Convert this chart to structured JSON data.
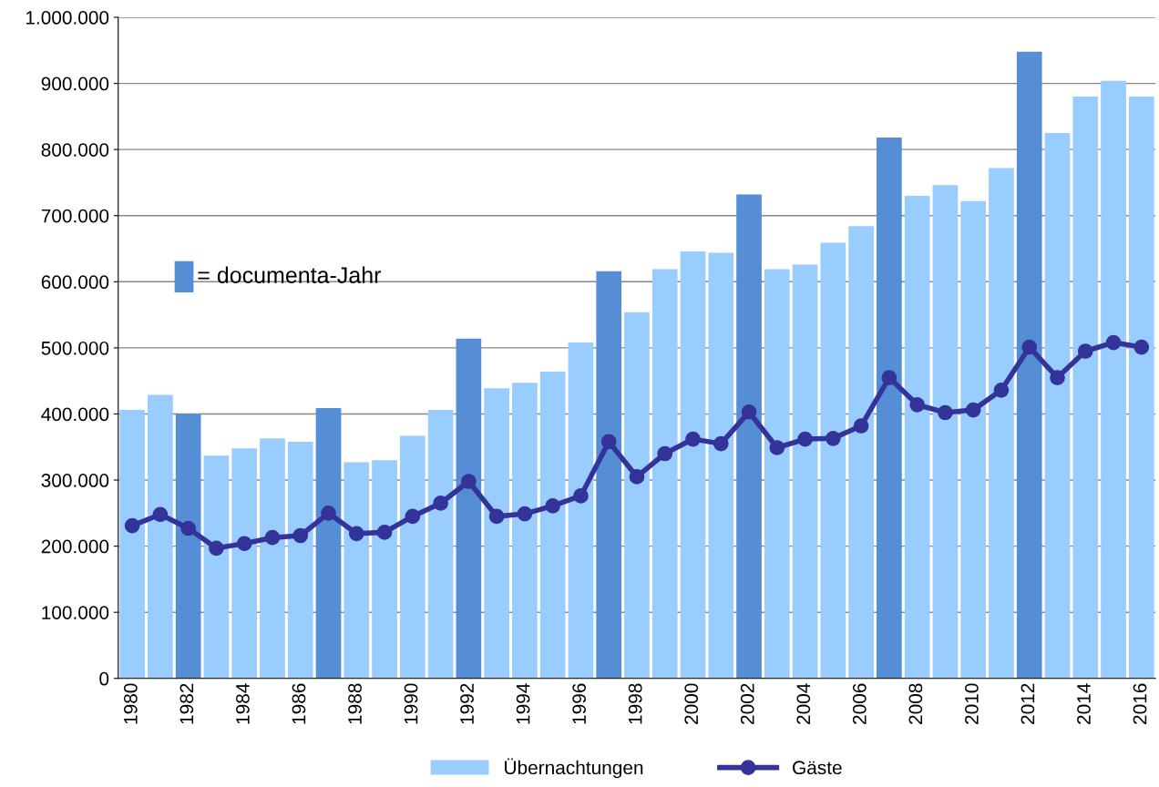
{
  "chart_data": {
    "type": "bar",
    "categories": [
      "1980",
      null,
      "1982",
      null,
      "1984",
      null,
      "1986",
      null,
      "1988",
      null,
      "1990",
      null,
      "1992",
      null,
      "1994",
      null,
      "1996",
      null,
      "1998",
      null,
      "2000",
      null,
      "2002",
      null,
      "2004",
      null,
      "2006",
      null,
      "2008",
      null,
      "2010",
      null,
      "2012",
      null,
      "2014",
      null,
      "2016"
    ],
    "series": [
      {
        "name": "Übernachtungen",
        "color": "#99ccff",
        "colors": [
          "#99ccff",
          "#99ccff",
          "#558ed5",
          "#99ccff",
          "#99ccff",
          "#99ccff",
          "#99ccff",
          "#558ed5",
          "#99ccff",
          "#99ccff",
          "#99ccff",
          "#99ccff",
          "#558ed5",
          "#99ccff",
          "#99ccff",
          "#99ccff",
          "#99ccff",
          "#558ed5",
          "#99ccff",
          "#99ccff",
          "#99ccff",
          "#99ccff",
          "#558ed5",
          "#99ccff",
          "#99ccff",
          "#99ccff",
          "#99ccff",
          "#558ed5",
          "#99ccff",
          "#99ccff",
          "#99ccff",
          "#99ccff",
          "#558ed5",
          "#99ccff",
          "#99ccff",
          "#99ccff",
          "#99ccff"
        ],
        "values": [
          406000,
          429000,
          400000,
          337000,
          348000,
          363000,
          358000,
          409000,
          327000,
          330000,
          367000,
          406000,
          514000,
          439000,
          447000,
          464000,
          508000,
          616000,
          554000,
          619000,
          646000,
          644000,
          732000,
          619000,
          626000,
          659000,
          684000,
          818000,
          730000,
          746000,
          722000,
          772000,
          948000,
          825000,
          880000,
          904000,
          880000
        ]
      },
      {
        "name": "Gäste",
        "type": "line",
        "color": "#333399",
        "marker": "circle",
        "values": [
          231000,
          248000,
          227000,
          197000,
          204000,
          213000,
          216000,
          250000,
          219000,
          221000,
          245000,
          265000,
          298000,
          245000,
          249000,
          261000,
          276000,
          358000,
          305000,
          340000,
          362000,
          355000,
          403000,
          349000,
          362000,
          363000,
          382000,
          455000,
          414000,
          402000,
          406000,
          436000,
          501000,
          455000,
          495000,
          508000,
          501000
        ]
      }
    ],
    "annotations": [
      "= documenta-Jahr"
    ],
    "ylim": [
      0,
      1000000
    ],
    "yticks": [
      {
        "value": 0,
        "label": "0"
      },
      {
        "value": 100000,
        "label": "100.000"
      },
      {
        "value": 200000,
        "label": "200.000"
      },
      {
        "value": 300000,
        "label": "300.000"
      },
      {
        "value": 400000,
        "label": "400.000"
      },
      {
        "value": 500000,
        "label": "500.000"
      },
      {
        "value": 600000,
        "label": "600.000"
      },
      {
        "value": 700000,
        "label": "700.000"
      },
      {
        "value": 800000,
        "label": "800.000"
      },
      {
        "value": 900000,
        "label": "900.000"
      },
      {
        "value": 1000000,
        "label": "1.000.000"
      }
    ],
    "grid": "y",
    "legend": "bottom"
  }
}
